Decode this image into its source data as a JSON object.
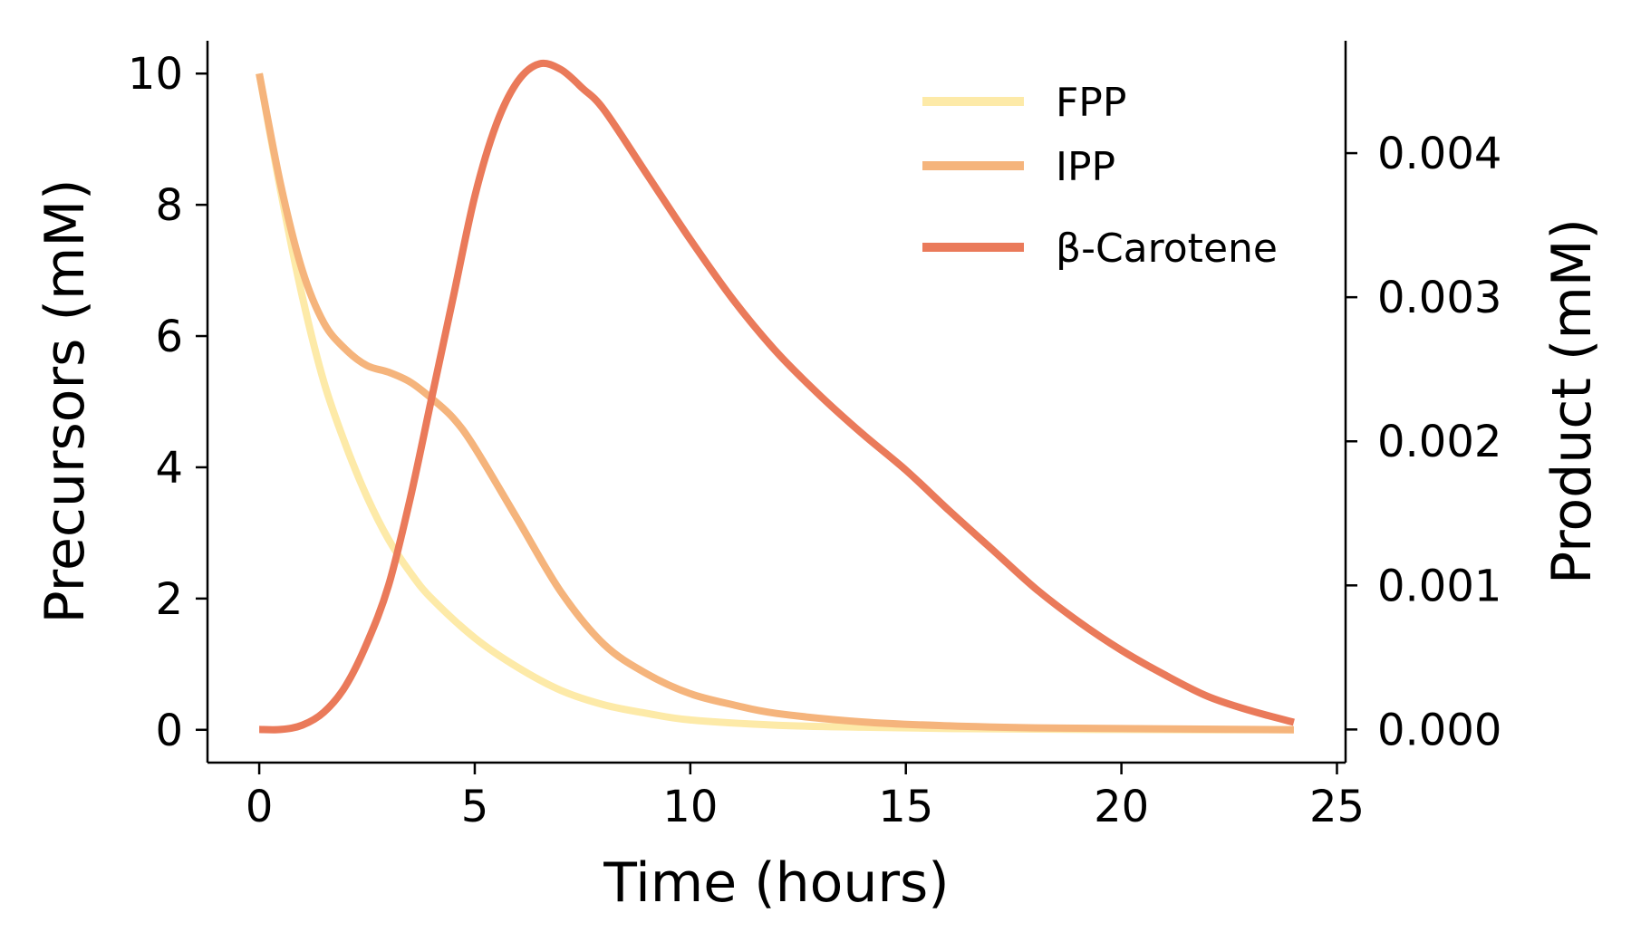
{
  "chart_data": {
    "type": "line",
    "xlabel": "Time (hours)",
    "ylabel": "Precursors (mM)",
    "y2label": "Product (mM)",
    "xlim": [
      -1.2,
      25.2
    ],
    "ylim": [
      -0.5,
      10.5
    ],
    "y2lim": [
      -0.00023,
      0.00478
    ],
    "xticks": [
      0,
      5,
      10,
      15,
      20,
      25
    ],
    "yticks": [
      0,
      2,
      4,
      6,
      8,
      10
    ],
    "y2ticks": [
      {
        "value": 0.0,
        "label": "0.000"
      },
      {
        "value": 0.001,
        "label": "0.001"
      },
      {
        "value": 0.002,
        "label": "0.002"
      },
      {
        "value": 0.003,
        "label": "0.003"
      },
      {
        "value": 0.004,
        "label": "0.004"
      }
    ],
    "legend_position": "top-right",
    "grid": false,
    "series": [
      {
        "name": "FPP",
        "axis": "left",
        "color": "#fdeaa8",
        "x": [
          0,
          0.5,
          1,
          1.5,
          2,
          2.5,
          3,
          3.5,
          4,
          5,
          6,
          7,
          8,
          9,
          10,
          12,
          14,
          16,
          18,
          20,
          22,
          24
        ],
        "y": [
          10.0,
          8.2,
          6.6,
          5.3,
          4.35,
          3.55,
          2.9,
          2.4,
          2.0,
          1.4,
          0.95,
          0.6,
          0.38,
          0.25,
          0.15,
          0.07,
          0.04,
          0.02,
          0.01,
          0.005,
          0.0,
          0.0
        ]
      },
      {
        "name": "IPP",
        "axis": "left",
        "color": "#f5b47c",
        "x": [
          0,
          0.5,
          1,
          1.5,
          2,
          2.5,
          3,
          3.5,
          4,
          4.5,
          5,
          6,
          7,
          8,
          9,
          10,
          11,
          12,
          14,
          16,
          18,
          20,
          24
        ],
        "y": [
          10.0,
          8.3,
          7.0,
          6.2,
          5.8,
          5.55,
          5.45,
          5.3,
          5.05,
          4.75,
          4.3,
          3.2,
          2.1,
          1.3,
          0.85,
          0.55,
          0.38,
          0.25,
          0.12,
          0.06,
          0.03,
          0.02,
          0.0
        ]
      },
      {
        "name": "β-Carotene",
        "axis": "right",
        "color": "#ea7a5a",
        "x": [
          0,
          0.5,
          1,
          1.5,
          2,
          2.5,
          3,
          3.5,
          4,
          4.5,
          5,
          5.5,
          6,
          6.5,
          7,
          7.5,
          8,
          9,
          10,
          11,
          12,
          13,
          14,
          15,
          16,
          17,
          18,
          19,
          20,
          21,
          22,
          23,
          24
        ],
        "y": [
          0.0,
          0.0,
          3e-05,
          0.00012,
          0.0003,
          0.0006,
          0.001,
          0.0016,
          0.0023,
          0.003,
          0.0037,
          0.0042,
          0.0045,
          0.00462,
          0.00458,
          0.00445,
          0.0043,
          0.00385,
          0.0034,
          0.00298,
          0.00262,
          0.00232,
          0.00205,
          0.0018,
          0.00152,
          0.00125,
          0.00098,
          0.00075,
          0.00055,
          0.00038,
          0.00023,
          0.00013,
          5e-05
        ]
      }
    ]
  }
}
